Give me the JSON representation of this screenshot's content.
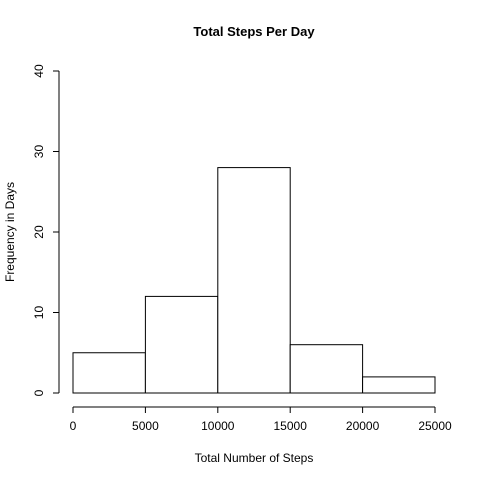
{
  "chart_data": {
    "type": "bar",
    "title": "Total Steps Per Day",
    "xlabel": "Total Number of Steps",
    "ylabel": "Frequency in Days",
    "bins": [
      {
        "start": 0,
        "end": 5000,
        "value": 5
      },
      {
        "start": 5000,
        "end": 10000,
        "value": 12
      },
      {
        "start": 10000,
        "end": 15000,
        "value": 28
      },
      {
        "start": 15000,
        "end": 20000,
        "value": 6
      },
      {
        "start": 20000,
        "end": 25000,
        "value": 2
      }
    ],
    "xlim": [
      0,
      25000
    ],
    "ylim": [
      0,
      40
    ],
    "x_ticks": [
      0,
      5000,
      10000,
      15000,
      20000,
      25000
    ],
    "y_ticks": [
      0,
      10,
      20,
      30,
      40
    ],
    "grid": false,
    "colors": {
      "bar_fill": "#ffffff",
      "bar_stroke": "#000000",
      "axis": "#000000",
      "background": "#ffffff"
    }
  }
}
